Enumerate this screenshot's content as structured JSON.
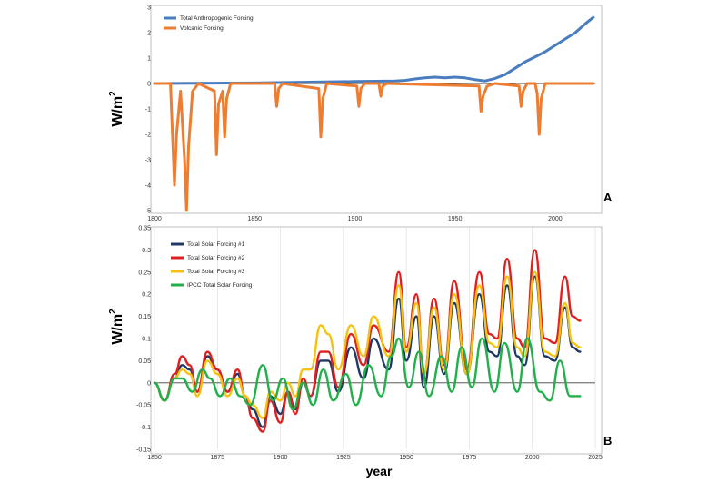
{
  "chart_data": [
    {
      "type": "line",
      "panel_label": "A",
      "ylabel": "W/m",
      "ylabel_sup": "2",
      "xlabel": "",
      "xlim": [
        1800,
        2020
      ],
      "ylim": [
        -5,
        3
      ],
      "xticks": [
        "1800",
        "1850",
        "1900",
        "1950",
        "2000"
      ],
      "yticks": [
        "3",
        "2",
        "1",
        "0",
        "-1",
        "-2",
        "-3",
        "-4",
        "-5"
      ],
      "legend_position": "top-left",
      "series": [
        {
          "name": "Total Anthropogenic Forcing",
          "color": "#4a7dc0",
          "x": [
            1800,
            1850,
            1900,
            1920,
            1925,
            1930,
            1935,
            1940,
            1945,
            1950,
            1955,
            1960,
            1965,
            1970,
            1975,
            1980,
            1985,
            1990,
            1995,
            2000,
            2005,
            2010,
            2015,
            2019
          ],
          "y": [
            0,
            0.02,
            0.08,
            0.1,
            0.12,
            0.18,
            0.22,
            0.25,
            0.22,
            0.25,
            0.22,
            0.15,
            0.1,
            0.2,
            0.35,
            0.6,
            0.85,
            1.05,
            1.25,
            1.5,
            1.75,
            2.0,
            2.35,
            2.6
          ]
        },
        {
          "name": "Volcanic Forcing",
          "color": "#ed7d31",
          "x": [
            1800,
            1808,
            1809,
            1810,
            1811,
            1813,
            1815,
            1816,
            1817,
            1819,
            1822,
            1830,
            1831,
            1832,
            1834,
            1835,
            1836,
            1838,
            1860,
            1861,
            1862,
            1864,
            1882,
            1883,
            1884,
            1886,
            1901,
            1902,
            1903,
            1905,
            1912,
            1913,
            1914,
            1916,
            1962,
            1963,
            1964,
            1966,
            1970,
            1982,
            1983,
            1984,
            1986,
            1990,
            1991,
            1992,
            1993,
            1995,
            2019
          ],
          "y": [
            0,
            0,
            -2,
            -4,
            -2,
            -0.3,
            -3,
            -5,
            -2.5,
            -0.3,
            0,
            -0.3,
            -2.8,
            -0.8,
            -0.3,
            -2.1,
            -0.6,
            0,
            0,
            -0.9,
            -0.2,
            0,
            -0.2,
            -2.1,
            -0.6,
            0,
            -0.1,
            -0.9,
            -0.2,
            0,
            0,
            -0.5,
            -0.1,
            0,
            -0.1,
            -1.1,
            -0.5,
            -0.1,
            0,
            -0.1,
            -0.9,
            -0.3,
            0,
            0,
            -0.4,
            -2,
            -0.6,
            0,
            0
          ]
        }
      ]
    },
    {
      "type": "line",
      "panel_label": "B",
      "ylabel": "W/m",
      "ylabel_sup": "2",
      "xlabel": "year",
      "xlim": [
        1850,
        2025
      ],
      "ylim": [
        -0.15,
        0.35
      ],
      "xticks": [
        "1850",
        "1875",
        "1900",
        "1925",
        "1950",
        "1975",
        "2000",
        "2025"
      ],
      "yticks": [
        "0.35",
        "0.3",
        "0.25",
        "0.2",
        "0.15",
        "0.1",
        "0.05",
        "0",
        "-0.05",
        "-0.1",
        "-0.15"
      ],
      "legend_position": "top-left",
      "series": [
        {
          "name": "Total Solar Forcing #1",
          "color": "#1f3864",
          "x": [
            1850,
            1854,
            1858,
            1861,
            1864,
            1867,
            1871,
            1875,
            1879,
            1883,
            1886,
            1889,
            1893,
            1896,
            1900,
            1903,
            1906,
            1909,
            1912,
            1916,
            1919,
            1923,
            1928,
            1933,
            1937,
            1943,
            1947,
            1950,
            1954,
            1957,
            1961,
            1965,
            1969,
            1974,
            1979,
            1983,
            1986,
            1990,
            1994,
            1997,
            2001,
            2005,
            2009,
            2013,
            2016,
            2019
          ],
          "y": [
            0,
            -0.04,
            0.01,
            0.04,
            0.03,
            -0.02,
            0.06,
            0.03,
            -0.02,
            0.02,
            -0.03,
            -0.06,
            -0.1,
            -0.03,
            -0.07,
            -0.02,
            -0.06,
            0,
            -0.03,
            0.05,
            0.05,
            -0.02,
            0.08,
            0.01,
            0.1,
            0.03,
            0.19,
            0.05,
            0.15,
            -0.01,
            0.15,
            0.02,
            0.18,
            0.02,
            0.2,
            0.07,
            0.06,
            0.22,
            0.06,
            0.04,
            0.24,
            0.06,
            0.05,
            0.17,
            0.08,
            0.07
          ]
        },
        {
          "name": "Total Solar Forcing #2",
          "color": "#e02020",
          "x": [
            1850,
            1854,
            1858,
            1861,
            1864,
            1867,
            1871,
            1875,
            1879,
            1883,
            1886,
            1889,
            1893,
            1896,
            1900,
            1903,
            1906,
            1909,
            1912,
            1916,
            1919,
            1923,
            1928,
            1933,
            1937,
            1943,
            1947,
            1950,
            1954,
            1957,
            1961,
            1965,
            1969,
            1974,
            1979,
            1983,
            1986,
            1990,
            1994,
            1997,
            2001,
            2005,
            2009,
            2013,
            2016,
            2019
          ],
          "y": [
            0,
            -0.04,
            0.02,
            0.06,
            0.04,
            -0.02,
            0.07,
            0.03,
            -0.02,
            0.03,
            -0.03,
            -0.08,
            -0.11,
            -0.04,
            -0.09,
            -0.02,
            -0.07,
            0.01,
            -0.03,
            0.07,
            0.07,
            -0.01,
            0.11,
            0.04,
            0.13,
            0.07,
            0.25,
            0.08,
            0.2,
            0.02,
            0.19,
            0.04,
            0.23,
            0.03,
            0.25,
            0.11,
            0.1,
            0.28,
            0.1,
            0.08,
            0.3,
            0.1,
            0.09,
            0.24,
            0.15,
            0.14
          ]
        },
        {
          "name": "Total Solar Forcing #3",
          "color": "#f5c211",
          "x": [
            1850,
            1854,
            1858,
            1861,
            1864,
            1867,
            1871,
            1875,
            1879,
            1883,
            1886,
            1889,
            1893,
            1896,
            1900,
            1903,
            1906,
            1909,
            1912,
            1916,
            1919,
            1923,
            1928,
            1933,
            1937,
            1943,
            1947,
            1950,
            1954,
            1957,
            1961,
            1965,
            1969,
            1974,
            1979,
            1983,
            1986,
            1990,
            1994,
            1997,
            2001,
            2005,
            2009,
            2013,
            2016,
            2019
          ],
          "y": [
            0,
            -0.04,
            0.01,
            0.03,
            0.02,
            -0.03,
            0.05,
            0.02,
            -0.03,
            0.01,
            -0.03,
            -0.05,
            -0.08,
            -0.02,
            -0.04,
            0,
            -0.03,
            0.03,
            0.03,
            0.13,
            0.11,
            0.03,
            0.13,
            0.06,
            0.15,
            0.06,
            0.22,
            0.07,
            0.18,
            0.02,
            0.17,
            0.03,
            0.2,
            0.02,
            0.22,
            0.09,
            0.08,
            0.24,
            0.08,
            0.06,
            0.25,
            0.07,
            0.06,
            0.18,
            0.09,
            0.08
          ]
        },
        {
          "name": "IPCC Total Solar Forcing",
          "color": "#22b04b",
          "x": [
            1850,
            1854,
            1858,
            1861,
            1865,
            1869,
            1872,
            1876,
            1880,
            1884,
            1888,
            1893,
            1897,
            1901,
            1905,
            1909,
            1913,
            1917,
            1921,
            1926,
            1930,
            1935,
            1940,
            1944,
            1947,
            1951,
            1955,
            1959,
            1964,
            1968,
            1972,
            1976,
            1980,
            1985,
            1989,
            1994,
            1998,
            2003,
            2007,
            2011,
            2015,
            2019
          ],
          "y": [
            0,
            -0.04,
            0.01,
            0.01,
            -0.02,
            0.03,
            0.01,
            -0.03,
            0.01,
            -0.03,
            -0.05,
            0.04,
            -0.04,
            0.01,
            -0.06,
            0,
            -0.05,
            0.03,
            -0.04,
            0.02,
            -0.05,
            0.04,
            -0.03,
            0.06,
            0.1,
            -0.01,
            0.07,
            -0.03,
            0.06,
            -0.02,
            0.08,
            -0.01,
            0.1,
            -0.02,
            0.09,
            -0.02,
            0.1,
            -0.02,
            -0.04,
            0.05,
            -0.03,
            -0.03
          ]
        }
      ]
    }
  ]
}
